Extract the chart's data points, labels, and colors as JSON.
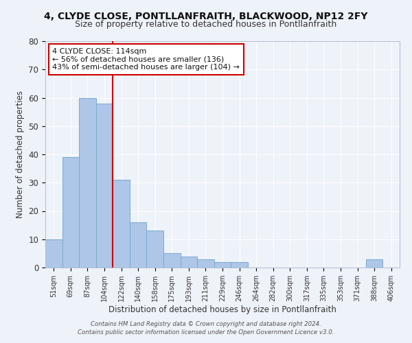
{
  "title1": "4, CLYDE CLOSE, PONTLLANFRAITH, BLACKWOOD, NP12 2FY",
  "title2": "Size of property relative to detached houses in Pontllanfraith",
  "xlabel": "Distribution of detached houses by size in Pontllanfraith",
  "ylabel": "Number of detached properties",
  "bar_labels": [
    "51sqm",
    "69sqm",
    "87sqm",
    "104sqm",
    "122sqm",
    "140sqm",
    "158sqm",
    "175sqm",
    "193sqm",
    "211sqm",
    "229sqm",
    "246sqm",
    "264sqm",
    "282sqm",
    "300sqm",
    "317sqm",
    "335sqm",
    "353sqm",
    "371sqm",
    "388sqm",
    "406sqm"
  ],
  "bar_values": [
    10,
    39,
    60,
    58,
    31,
    16,
    13,
    5,
    4,
    3,
    2,
    2,
    0,
    0,
    0,
    0,
    0,
    0,
    0,
    3,
    0
  ],
  "bar_color": "#aec6e8",
  "bar_edge_color": "#7aaad0",
  "vline_x": 3.5,
  "vline_color": "#cc0000",
  "ylim": [
    0,
    80
  ],
  "yticks": [
    0,
    10,
    20,
    30,
    40,
    50,
    60,
    70,
    80
  ],
  "annotation_title": "4 CLYDE CLOSE: 114sqm",
  "annotation_line1": "← 56% of detached houses are smaller (136)",
  "annotation_line2": "43% of semi-detached houses are larger (104) →",
  "annotation_box_color": "#ffffff",
  "annotation_box_edge": "#cc0000",
  "footer1": "Contains HM Land Registry data © Crown copyright and database right 2024.",
  "footer2": "Contains public sector information licensed under the Open Government Licence v3.0.",
  "background_color": "#eef2f9",
  "grid_color": "#ffffff",
  "title_fontsize": 10,
  "subtitle_fontsize": 9
}
